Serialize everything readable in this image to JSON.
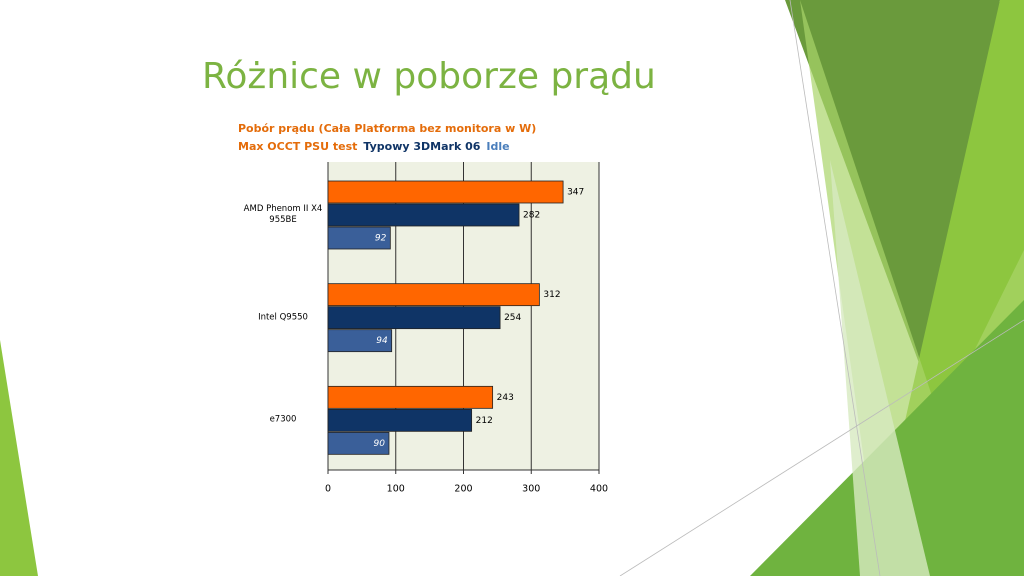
{
  "slide_title": "Różnice w poborze prądu",
  "chart_data": {
    "type": "bar",
    "orientation": "horizontal",
    "title": "Pobór prądu (Cała Platforma bez monitora w W)",
    "categories": [
      "AMD Phenom II X4 955BE",
      "Intel Q9550",
      "e7300"
    ],
    "series": [
      {
        "name": "Max OCCT PSU test",
        "color": "#ff6600",
        "values": [
          347,
          312,
          243
        ]
      },
      {
        "name": "Typowy 3DMark 06",
        "color": "#0f3466",
        "values": [
          282,
          254,
          212
        ]
      },
      {
        "name": "Idle",
        "color": "#3a5f99",
        "values": [
          92,
          94,
          90
        ]
      }
    ],
    "xlim": [
      0,
      400
    ],
    "xticks": [
      0,
      100,
      200,
      300,
      400
    ],
    "grid": true
  }
}
